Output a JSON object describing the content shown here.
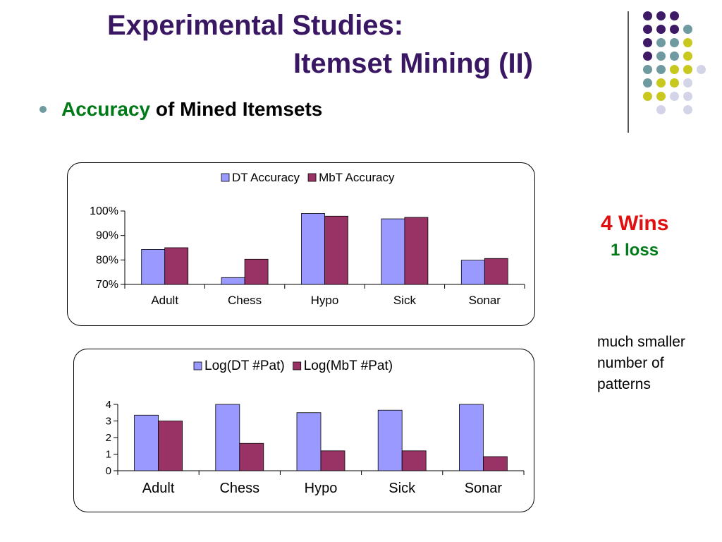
{
  "slide": {
    "title_line1": "Experimental Studies:",
    "title_line2": "Itemset Mining (II)",
    "heading_accent": "Accuracy",
    "heading_rest": " of Mined Itemsets",
    "wins": "4 Wins",
    "loss": "1 loss",
    "note": "much smaller number of patterns"
  },
  "colors": {
    "title": "#3a1763",
    "accent_green": "#007a18",
    "wins_red": "#e01010",
    "series1": "#9999ff",
    "series2": "#993366",
    "deco_purple": "#3e1a66",
    "deco_teal": "#6f9aa0",
    "deco_yellow": "#c8c81e",
    "deco_lavender": "#d4d4e8"
  },
  "chart_data": [
    {
      "type": "bar",
      "categories": [
        "Adult",
        "Chess",
        "Hypo",
        "Sick",
        "Sonar"
      ],
      "series": [
        {
          "name": "DT Accuracy",
          "values": [
            84.3,
            72.8,
            99.0,
            96.8,
            79.9
          ]
        },
        {
          "name": "MbT Accuracy",
          "values": [
            85.0,
            80.3,
            97.9,
            97.4,
            80.6
          ]
        }
      ],
      "yticks": [
        70,
        80,
        90,
        100
      ],
      "ytick_labels": [
        "70%",
        "80%",
        "90%",
        "100%"
      ],
      "ylim": [
        70,
        100
      ],
      "legend": "top"
    },
    {
      "type": "bar",
      "categories": [
        "Adult",
        "Chess",
        "Hypo",
        "Sick",
        "Sonar"
      ],
      "series": [
        {
          "name": "Log(DT #Pat)",
          "values": [
            3.35,
            4.0,
            3.5,
            3.65,
            4.0
          ]
        },
        {
          "name": "Log(MbT #Pat)",
          "values": [
            3.0,
            1.65,
            1.2,
            1.2,
            0.85
          ]
        }
      ],
      "yticks": [
        0,
        1,
        2,
        3,
        4
      ],
      "ytick_labels": [
        "0",
        "1",
        "2",
        "3",
        "4"
      ],
      "ylim": [
        0,
        4
      ],
      "legend": "top"
    }
  ]
}
